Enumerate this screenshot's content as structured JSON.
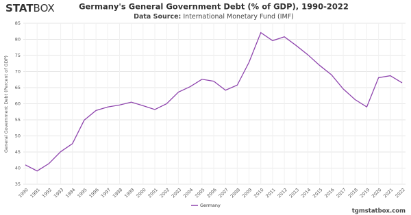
{
  "header": {
    "logo_bold": "STAT",
    "logo_light": "BOX"
  },
  "chart_data": {
    "type": "line",
    "title": "Germany's General Government Debt (% of GDP), 1990-2022",
    "source_label": "Data Source:",
    "source": "International Monetary Fund (IMF)",
    "y_label": "General Government Debt (Percent of GDP)",
    "categories": [
      "1990",
      "1991",
      "1992",
      "1993",
      "1994",
      "1995",
      "1996",
      "1997",
      "1998",
      "1999",
      "2000",
      "2001",
      "2002",
      "2003",
      "2004",
      "2005",
      "2006",
      "2007",
      "2008",
      "2009",
      "2010",
      "2011",
      "2012",
      "2013",
      "2014",
      "2015",
      "2016",
      "2017",
      "2018",
      "2019",
      "2020",
      "2021",
      "2022"
    ],
    "series": [
      {
        "name": "Germany",
        "color": "#8e44ad",
        "values": [
          41.0,
          39.1,
          41.4,
          45.1,
          47.6,
          54.9,
          57.9,
          59.0,
          59.6,
          60.5,
          59.4,
          58.2,
          60.0,
          63.6,
          65.3,
          67.6,
          67.0,
          64.2,
          65.8,
          72.9,
          82.1,
          79.6,
          80.8,
          78.1,
          75.2,
          71.9,
          69.0,
          64.6,
          61.3,
          59.0,
          68.1,
          68.7,
          66.5
        ]
      }
    ],
    "ylim": [
      35,
      85
    ],
    "yticks": [
      35,
      40,
      45,
      50,
      55,
      60,
      65,
      70,
      75,
      80,
      85
    ],
    "grid": true
  },
  "footer": "tgmstatbox.com"
}
